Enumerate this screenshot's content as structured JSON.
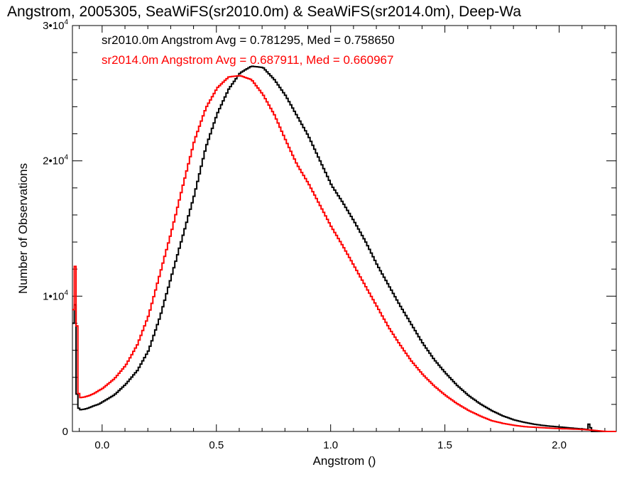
{
  "chart_data": {
    "type": "line",
    "title": "Angstrom, 2005305, SeaWiFS(sr2010.0m) & SeaWiFS(sr2014.0m), Deep-Wa",
    "xlabel": "Angstrom ()",
    "ylabel": "Number of Observations",
    "xlim": [
      -0.13,
      2.25
    ],
    "ylim": [
      0,
      30000
    ],
    "x_ticks": [
      {
        "value": 0.0,
        "label": "0.0"
      },
      {
        "value": 0.5,
        "label": "0.5"
      },
      {
        "value": 1.0,
        "label": "1.0"
      },
      {
        "value": 1.5,
        "label": "1.5"
      },
      {
        "value": 2.0,
        "label": "2.0"
      }
    ],
    "y_ticks": [
      {
        "value": 0,
        "base": "0",
        "exp": ""
      },
      {
        "value": 10000,
        "base": "1•10",
        "exp": "4"
      },
      {
        "value": 20000,
        "base": "2•10",
        "exp": "4"
      },
      {
        "value": 30000,
        "base": "3•10",
        "exp": "4"
      }
    ],
    "annotations": [
      {
        "text": "sr2010.0m Angstrom Avg = 0.781295, Med = 0.758650",
        "color": "#000000"
      },
      {
        "text": "sr2014.0m Angstrom Avg = 0.687911, Med = 0.660967",
        "color": "#ff0000"
      }
    ],
    "series": [
      {
        "color": "#000000",
        "x": [
          -0.13,
          -0.12,
          -0.115,
          -0.11,
          -0.1,
          -0.08,
          -0.06,
          -0.04,
          -0.02,
          0.0,
          0.05,
          0.1,
          0.15,
          0.2,
          0.25,
          0.3,
          0.35,
          0.4,
          0.45,
          0.5,
          0.55,
          0.6,
          0.65,
          0.7,
          0.75,
          0.8,
          0.85,
          0.9,
          0.95,
          1.0,
          1.05,
          1.1,
          1.15,
          1.2,
          1.25,
          1.3,
          1.35,
          1.4,
          1.45,
          1.5,
          1.55,
          1.6,
          1.65,
          1.7,
          1.75,
          1.8,
          1.85,
          1.9,
          1.95,
          2.0,
          2.05,
          2.1,
          2.12,
          2.13,
          2.135,
          2.14,
          2.15,
          2.2,
          2.25
        ],
        "y": [
          8000,
          9700,
          3000,
          1800,
          1600,
          1650,
          1750,
          1900,
          2000,
          2200,
          2700,
          3500,
          4500,
          6000,
          8500,
          11500,
          14500,
          17500,
          21000,
          23500,
          25300,
          26500,
          27000,
          26900,
          26000,
          24800,
          23300,
          21800,
          20000,
          18200,
          16900,
          15500,
          14000,
          12300,
          10800,
          9300,
          7900,
          6500,
          5300,
          4300,
          3400,
          2650,
          2050,
          1550,
          1150,
          850,
          650,
          500,
          400,
          330,
          250,
          180,
          150,
          800,
          150,
          0,
          0,
          0,
          0
        ]
      },
      {
        "color": "#ff0000",
        "x": [
          -0.13,
          -0.12,
          -0.115,
          -0.11,
          -0.1,
          -0.08,
          -0.06,
          -0.04,
          -0.02,
          0.0,
          0.05,
          0.1,
          0.15,
          0.2,
          0.25,
          0.3,
          0.35,
          0.4,
          0.45,
          0.5,
          0.55,
          0.6,
          0.65,
          0.7,
          0.75,
          0.8,
          0.85,
          0.9,
          0.95,
          1.0,
          1.05,
          1.1,
          1.15,
          1.2,
          1.25,
          1.3,
          1.35,
          1.4,
          1.45,
          1.5,
          1.55,
          1.6,
          1.65,
          1.7,
          1.75,
          1.8,
          1.85,
          1.9,
          1.95,
          2.0,
          2.05,
          2.1,
          2.15,
          2.2,
          2.25
        ],
        "y": [
          9000,
          13000,
          9000,
          3000,
          2500,
          2550,
          2650,
          2800,
          3000,
          3200,
          3900,
          4900,
          6400,
          8600,
          11700,
          14800,
          18200,
          21500,
          23900,
          25400,
          26200,
          26300,
          26000,
          24900,
          23400,
          21500,
          19700,
          18300,
          16700,
          15100,
          13700,
          12200,
          10700,
          9200,
          7700,
          6400,
          5200,
          4200,
          3350,
          2650,
          2050,
          1550,
          1150,
          800,
          600,
          450,
          350,
          300,
          250,
          210,
          180,
          150,
          80,
          0,
          0
        ]
      }
    ]
  }
}
